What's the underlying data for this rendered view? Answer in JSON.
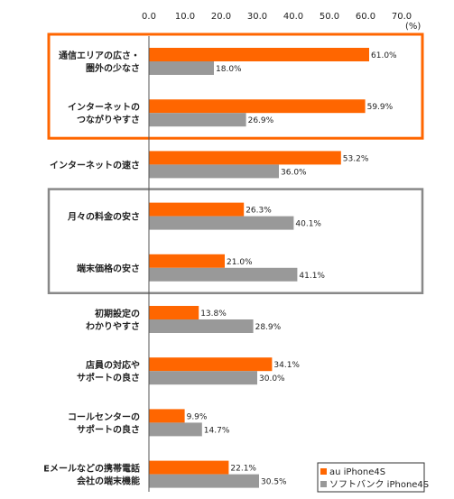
{
  "chart_data": {
    "type": "bar",
    "orientation": "horizontal",
    "unit_label": "(%)",
    "xlim": [
      0,
      70
    ],
    "ticks": [
      "0.0",
      "10.0",
      "20.0",
      "30.0",
      "40.0",
      "50.0",
      "60.0",
      "70.0"
    ],
    "tick_values": [
      0,
      10,
      20,
      30,
      40,
      50,
      60,
      70
    ],
    "categories": [
      [
        "通信エリアの広さ・",
        "圏外の少なさ"
      ],
      [
        "インターネットの",
        "つながりやすさ"
      ],
      [
        "インターネットの速さ"
      ],
      [
        "月々の料金の安さ"
      ],
      [
        "端末価格の安さ"
      ],
      [
        "初期設定の",
        "わかりやすさ"
      ],
      [
        "店員の対応や",
        "サポートの良さ"
      ],
      [
        "コールセンターの",
        "サポートの良さ"
      ],
      [
        "Eメールなどの携帯電話",
        "会社の端末機能"
      ]
    ],
    "series": [
      {
        "name": "au iPhone4S",
        "color": "#ff6600",
        "values": [
          61.0,
          59.9,
          53.2,
          26.3,
          21.0,
          13.8,
          34.1,
          9.9,
          22.1
        ],
        "labels": [
          "61.0%",
          "59.9%",
          "53.2%",
          "26.3%",
          "21.0%",
          "13.8%",
          "34.1%",
          "9.9%",
          "22.1%"
        ]
      },
      {
        "name": "ソフトバンク iPhone4S",
        "color": "#999999",
        "values": [
          18.0,
          26.9,
          36.0,
          40.1,
          41.1,
          28.9,
          30.0,
          14.7,
          30.5
        ],
        "labels": [
          "18.0%",
          "26.9%",
          "36.0%",
          "40.1%",
          "41.1%",
          "28.9%",
          "30.0%",
          "14.7%",
          "30.5%"
        ]
      }
    ],
    "highlight_boxes": [
      {
        "categories": [
          0,
          1
        ],
        "color": "#ff6600"
      },
      {
        "categories": [
          3,
          4
        ],
        "color": "#888888"
      }
    ],
    "legend_position": "bottom-right",
    "grid": false
  }
}
